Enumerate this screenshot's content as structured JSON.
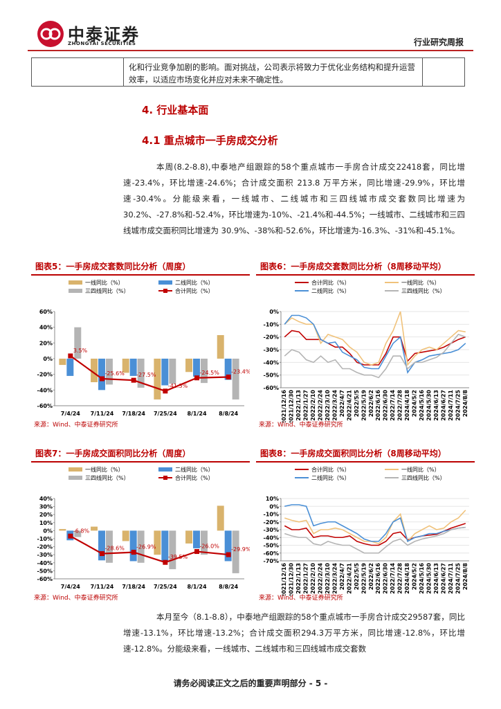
{
  "header": {
    "brand": "中泰证券",
    "brand_en": "ZHONGTAI SECURITIES",
    "report_type": "行业研究周报"
  },
  "table": {
    "text": "化和行业竞争加剧的影响。面对挑战，公司表示将致力于优化业务结构和提升运营效率，以适应市场变化并应对未来不确定性。"
  },
  "headings": [
    "4. 行业基本面",
    "4.1 重点城市一手房成交分析"
  ],
  "paragraphs": [
    "本周(8.2-8.8),中泰地产组跟踪的58个重点城市一手房合计成交22418套，同比增速-23.4%，环比增速-24.6%；合计成交面积 213.8 万平方米，同比增速-29.9%，环比增速-30.4%。分能级来看，一线城市、二线城市和三四线城市成交套数同比增速为 30.2%、-27.8%和-52.4%，环比增速为-10%、-21.4%和-44.5%；一线城市、二线城市和三四线城市成交面积同比增速为 30.9%、-38%和-52.6%，环比增速为-16.3%、-31%和-45.1%。",
    "本月至今（8.1-8.8），中泰地产组跟踪的58个重点城市一手房合计成交29587套，同比增速-13.1%，环比增速-13.2%；合计成交面积294.3万平方米，同比增速-12.8%，环比增速-12.8%。分能级来看，一线城市、二线城市和三四线城市成交套数"
  ],
  "figures": [
    {
      "title": "图表5：一手房成交套数同比分析（周度）",
      "source": "来源：Wind、中泰证券研究所",
      "chart": {
        "type": "combo",
        "categories": [
          "7/4/24",
          "7/11/24",
          "7/18/24",
          "7/25/24",
          "8/1/24",
          "8/8/24"
        ],
        "series": [
          {
            "name": "一线同比（%）",
            "type": "bar",
            "color": "#d9b36c",
            "values": [
              -8,
              -30,
              -18,
              -52,
              -17,
              30
            ]
          },
          {
            "name": "二线同比（%）",
            "type": "bar",
            "color": "#4a8fd6",
            "values": [
              -22,
              -40,
              -22,
              -34,
              -23,
              -27
            ]
          },
          {
            "name": "三四线同比（%）",
            "type": "bar",
            "color": "#b4b4b4",
            "values": [
              40,
              -33,
              -37,
              -32,
              -31,
              -52
            ]
          },
          {
            "name": "合计同比（%）",
            "type": "line",
            "color": "#c00000",
            "values": [
              3.5,
              -25.6,
              -27.5,
              -41.3,
              -24.5,
              -23.4
            ],
            "value_labels": [
              "3.5%",
              "-25.6%",
              "-27.5%",
              "-41.3%",
              "-24.5%",
              "-23.4%"
            ]
          }
        ],
        "ylim": [
          -60,
          60
        ],
        "yticks": [
          {
            "value": -60,
            "label": "-60%"
          },
          {
            "value": -40,
            "label": "-40%"
          },
          {
            "value": -20,
            "label": "-20%"
          },
          {
            "value": 0,
            "label": "0%"
          },
          {
            "value": 20,
            "label": "20%"
          },
          {
            "value": 40,
            "label": "40%"
          },
          {
            "value": 60,
            "label": "60%"
          }
        ]
      }
    },
    {
      "title": "图表6：一手房成交套数同比分析（8周移动平均）",
      "source": "来源：Wind、中泰证券研究所",
      "chart": {
        "type": "line",
        "categories": [
          "2021/12/16",
          "2021/12/30",
          "2022/1/13",
          "2022/1/27",
          "2022/2/10",
          "2022/2/24",
          "2022/3/10",
          "2022/3/24",
          "2022/4/7",
          "2022/4/21",
          "2022/5/5",
          "2022/5/19",
          "2022/6/2",
          "2022/6/16",
          "2022/6/30",
          "2022/7/14",
          "2022/7/28",
          "2024/4/18",
          "2024/5/2",
          "2024/5/16",
          "2024/5/30",
          "2024/6/13",
          "2024/6/27",
          "2024/7/11",
          "2024/7/25",
          "2024/8/8"
        ],
        "series": [
          {
            "name": "合计同比（%）",
            "color": "#c00000",
            "values": [
              -20,
              -15,
              -16,
              -22,
              -22,
              -22,
              -25,
              -28,
              -28,
              -33,
              -40,
              -42,
              -42,
              -42,
              -33,
              -20,
              -20,
              -39,
              -33,
              -32,
              -31,
              -30,
              -28,
              -25,
              -22,
              -20
            ]
          },
          {
            "name": "一线同比（%）",
            "color": "#f0c27a",
            "values": [
              -10,
              -5,
              -8,
              -10,
              -10,
              -25,
              -18,
              -20,
              -22,
              -28,
              -32,
              -40,
              -42,
              -40,
              -25,
              -15,
              0,
              -42,
              -35,
              -30,
              -28,
              -30,
              -25,
              -20,
              -15,
              -16
            ]
          },
          {
            "name": "二线同比（%）",
            "color": "#4a8fd6",
            "values": [
              -10,
              -3,
              -3,
              -5,
              -10,
              -22,
              -25,
              -24,
              -32,
              -35,
              -38,
              -44,
              -45,
              -45,
              -35,
              -25,
              -20,
              -48,
              -40,
              -38,
              -35,
              -34,
              -33,
              -32,
              -30,
              -25
            ]
          },
          {
            "name": "三四线同比（%）",
            "color": "#b4b4b4",
            "values": [
              -35,
              -30,
              -32,
              -38,
              -40,
              -35,
              -40,
              -38,
              -45,
              -45,
              -48,
              -50,
              -50,
              -52,
              -45,
              -35,
              -35,
              -45,
              -40,
              -40,
              -38,
              -36,
              -32,
              -25,
              -18,
              -20
            ]
          }
        ],
        "ylim": [
          -60,
          0
        ],
        "yticks": [
          {
            "value": -60,
            "label": "-60%"
          },
          {
            "value": -50,
            "label": "-50%"
          },
          {
            "value": -40,
            "label": "-40%"
          },
          {
            "value": -30,
            "label": "-30%"
          },
          {
            "value": -20,
            "label": "-20%"
          },
          {
            "value": -10,
            "label": "-10%"
          },
          {
            "value": 0,
            "label": "0%"
          }
        ]
      }
    },
    {
      "title": "图表7：一手房成交面积同比分析（周度）",
      "source": "来源：Wind、中泰证券研究所",
      "chart": {
        "type": "combo",
        "categories": [
          "7/4/24",
          "7/11/24",
          "7/18/24",
          "7/25/24",
          "8/1/24",
          "8/8/24"
        ],
        "series": [
          {
            "name": "一线同比（%）",
            "type": "bar",
            "color": "#d9b36c",
            "values": [
              2,
              5,
              -13,
              -30,
              -16,
              31
            ]
          },
          {
            "name": "二线同比（%）",
            "type": "bar",
            "color": "#4a8fd6",
            "values": [
              -12,
              -37,
              -38,
              -38,
              -22,
              -38
            ]
          },
          {
            "name": "三四线同比（%）",
            "type": "bar",
            "color": "#b4b4b4",
            "values": [
              -8,
              -40,
              -40,
              -48,
              -30,
              -53
            ]
          },
          {
            "name": "合计同比（%）",
            "type": "line",
            "color": "#c00000",
            "values": [
              -6.8,
              -28.6,
              -26.9,
              -39.5,
              -26.0,
              -29.9
            ],
            "value_labels": [
              "-6.8%",
              "-28.6%",
              "-26.9%",
              "-39.5%",
              "-26.0%",
              "-29.9%"
            ]
          }
        ],
        "ylim": [
          -60,
          40
        ],
        "yticks": [
          {
            "value": -60,
            "label": "-60%"
          },
          {
            "value": -50,
            "label": "-50%"
          },
          {
            "value": -40,
            "label": "-40%"
          },
          {
            "value": -30,
            "label": "-30%"
          },
          {
            "value": -20,
            "label": "-20%"
          },
          {
            "value": -10,
            "label": "-10%"
          },
          {
            "value": 0,
            "label": "0%"
          },
          {
            "value": 10,
            "label": "10%"
          },
          {
            "value": 20,
            "label": "20%"
          },
          {
            "value": 30,
            "label": "30%"
          },
          {
            "value": 40,
            "label": "40%"
          }
        ]
      }
    },
    {
      "title": "图表8：一手房成交面积同比分析（8周移动平均）",
      "source": "来源：Wind、中泰证券研究所",
      "chart": {
        "type": "line",
        "categories": [
          "2021/12/16",
          "2021/12/30",
          "2022/1/13",
          "2022/1/27",
          "2022/2/10",
          "2022/2/24",
          "2022/3/10",
          "2022/3/24",
          "2022/4/7",
          "2022/4/21",
          "2022/5/5",
          "2022/5/19",
          "2022/6/2",
          "2022/6/16",
          "2022/6/30",
          "2022/7/14",
          "2022/7/28",
          "2024/4/18",
          "2024/5/2",
          "2024/5/16",
          "2024/5/30",
          "2024/6/13",
          "2024/6/27",
          "2024/7/11",
          "2024/7/25",
          "2024/8/8"
        ],
        "series": [
          {
            "name": "合计同比（%）",
            "color": "#c00000",
            "values": [
              -25,
              -30,
              -30,
              -28,
              -40,
              -38,
              -38,
              -40,
              -40,
              -38,
              -45,
              -48,
              -50,
              -50,
              -45,
              -35,
              -33,
              -43,
              -40,
              -38,
              -37,
              -36,
              -32,
              -28,
              -25,
              -22
            ]
          },
          {
            "name": "一线同比（%）",
            "color": "#f0c27a",
            "values": [
              -15,
              -18,
              -20,
              -18,
              -35,
              -30,
              -30,
              -28,
              -30,
              -35,
              -40,
              -45,
              -45,
              -48,
              -40,
              -20,
              -10,
              -45,
              -35,
              -30,
              -25,
              -30,
              -28,
              -20,
              -15,
              -5
            ]
          },
          {
            "name": "二线同比（%）",
            "color": "#4a8fd6",
            "values": [
              0,
              2,
              2,
              0,
              -25,
              -22,
              -20,
              -20,
              -25,
              -30,
              -35,
              -42,
              -45,
              -45,
              -35,
              -20,
              -15,
              -45,
              -40,
              -38,
              -35,
              -35,
              -32,
              -30,
              -28,
              -27
            ]
          },
          {
            "name": "三四线同比（%）",
            "color": "#b4b4b4",
            "values": [
              -35,
              -38,
              -40,
              -40,
              -48,
              -50,
              -45,
              -48,
              -50,
              -50,
              -55,
              -60,
              -60,
              -60,
              -52,
              -45,
              -42,
              -50,
              -45,
              -42,
              -40,
              -38,
              -35,
              -30,
              -28,
              -27
            ]
          }
        ],
        "ylim": [
          -70,
          10
        ],
        "yticks": [
          {
            "value": -70,
            "label": "-70%"
          },
          {
            "value": -60,
            "label": "-60%"
          },
          {
            "value": -50,
            "label": "-50%"
          },
          {
            "value": -40,
            "label": "-40%"
          },
          {
            "value": -30,
            "label": "-30%"
          },
          {
            "value": -20,
            "label": "-20%"
          },
          {
            "value": -10,
            "label": "-10%"
          },
          {
            "value": 0,
            "label": "0%"
          },
          {
            "value": 10,
            "label": "10%"
          }
        ]
      }
    }
  ],
  "footer": "请务必阅读正文之后的重要声明部分 - 5 -"
}
